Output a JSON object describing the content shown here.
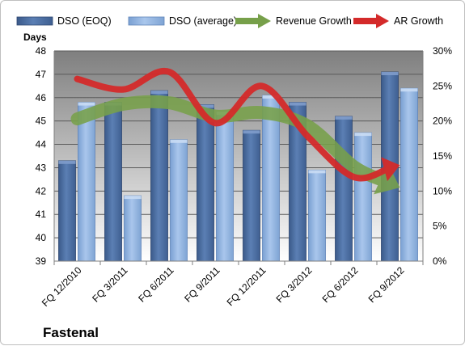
{
  "chart_data": {
    "type": "bar",
    "company": "Fastenal",
    "ylabel": "Days",
    "ylim": [
      39,
      48
    ],
    "y2lim": [
      0,
      30
    ],
    "y_ticks": [
      "39",
      "40",
      "41",
      "42",
      "43",
      "44",
      "45",
      "46",
      "47",
      "48"
    ],
    "y2_ticks": [
      "0%",
      "5%",
      "10%",
      "15%",
      "20%",
      "25%",
      "30%"
    ],
    "categories": [
      "FQ 12/2010",
      "FQ 3/2011",
      "FQ 6/2011",
      "FQ 9/2011",
      "FQ 12/2011",
      "FQ 3/2012",
      "FQ 6/2012",
      "FQ 9/2012"
    ],
    "series": [
      {
        "name": "DSO (EOQ)",
        "type": "bar",
        "axis": "left",
        "color": "#4f6f9f",
        "values": [
          43.3,
          45.8,
          46.3,
          45.7,
          44.6,
          45.8,
          45.2,
          47.1
        ]
      },
      {
        "name": "DSO (average)",
        "type": "bar",
        "axis": "left",
        "color": "#8fb2e0",
        "values": [
          45.8,
          41.8,
          44.2,
          45.4,
          46.1,
          42.9,
          44.5,
          46.4
        ]
      },
      {
        "name": "Revenue Growth",
        "type": "line",
        "axis": "right",
        "color": "#77a04a",
        "values": [
          20.3,
          22.4,
          22.6,
          20.7,
          21.2,
          19.3,
          13.5,
          10.5
        ]
      },
      {
        "name": "AR Growth",
        "type": "line",
        "axis": "right",
        "color": "#d42a2a",
        "values": [
          26.0,
          24.5,
          27.0,
          19.7,
          25.0,
          17.8,
          12.0,
          13.7
        ]
      }
    ],
    "legend_position": "top",
    "grid": true
  }
}
